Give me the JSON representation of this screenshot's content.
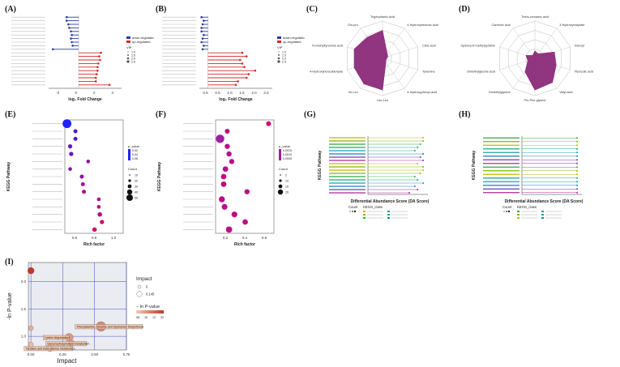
{
  "figure": {
    "panel_labels": [
      "(A)",
      "(B)",
      "(C)",
      "(D)",
      "(E)",
      "(F)",
      "(G)",
      "(H)",
      "(I)"
    ]
  },
  "colors": {
    "down": "#2b3aa6",
    "up": "#d62728",
    "radar_fill": "#8b2a7a",
    "bubble_low": "#f4c9b0",
    "bubble_high": "#c0392b",
    "kegg_high": "#d7006d",
    "kegg_low": "#2222ff"
  },
  "chart_data": [
    {
      "id": "A",
      "type": "bar",
      "orientation": "horizontal",
      "xlabel": "log₂ Fold Change",
      "xticks": [
        "-2",
        "0",
        "2",
        "4"
      ],
      "xlim": [
        -3.5,
        5
      ],
      "legend": [
        "down-regulated",
        "up-regulated"
      ],
      "legend_extra_title": "VIP",
      "legend_extra": [
        "1.0",
        "1.5",
        "2.0",
        "2.5"
      ],
      "categories": [
        "m1",
        "m2",
        "m3",
        "m4",
        "m5",
        "m6",
        "m7",
        "m8",
        "m9",
        "m10",
        "m11",
        "m12",
        "m13",
        "m14",
        "m15",
        "m16",
        "m17",
        "m18",
        "m19",
        "m20"
      ],
      "values": [
        -1.4,
        -1.4,
        -1.2,
        -1.1,
        -0.9,
        -0.8,
        -0.9,
        -0.8,
        -0.7,
        -3.0,
        2.6,
        2.4,
        2.5,
        2.3,
        2.2,
        2.2,
        2.1,
        2.0,
        2.0,
        3.6
      ]
    },
    {
      "id": "B",
      "type": "bar",
      "orientation": "horizontal",
      "xlabel": "log₂ Fold Change",
      "xticks": [
        "0.5",
        "0.5",
        "1.0",
        "1.5",
        "2.0",
        "2.5"
      ],
      "xlim": [
        -0.4,
        3
      ],
      "legend": [
        "down-regulated",
        "up-regulated"
      ],
      "legend_extra_title": "VIP",
      "legend_extra": [
        "1.0",
        "1.5",
        "2.0",
        "2.5"
      ],
      "categories": [
        "n1",
        "n2",
        "n3",
        "n4",
        "n5",
        "n6",
        "n7",
        "n8",
        "n9",
        "n10",
        "n11",
        "n12",
        "n13",
        "n14",
        "n15",
        "n16",
        "n17",
        "n18",
        "n19",
        "n20"
      ],
      "values": [
        -0.3,
        -0.2,
        -0.25,
        -0.3,
        -0.3,
        -0.2,
        -0.25,
        -0.3,
        -0.2,
        -0.25,
        1.6,
        1.8,
        1.5,
        1.6,
        1.7,
        2.2,
        1.9,
        1.8,
        1.4,
        1.3
      ]
    },
    {
      "id": "C",
      "type": "radar",
      "axes": [
        "Tryptophanic Acid",
        "4-Hydroxybenzoic acid",
        "Citric acid",
        "Tyramine",
        "4-Hydroxyphenyl-acid",
        "Leu-Leu",
        "Ile-Leu",
        "4-Hydroxybenzaldehyde",
        "N-methyltyramine acid",
        "Gln-pro"
      ],
      "values": [
        0.75,
        0.2,
        0.15,
        0.1,
        0.15,
        0.85,
        0.85,
        0.8,
        0.8,
        0.7
      ]
    },
    {
      "id": "D",
      "type": "radar",
      "axes": [
        "Trans-cinnamic acid",
        "3-Hydroxybutyrate",
        "Indoxyl",
        "Pipecolic acid",
        "Valyl-acid",
        "Pro-Phe-glycine",
        "Dimethylglycine",
        "Dimethylglycine acid",
        "5-hydroxy-6-methylpyridine",
        "Carbonic acid"
      ],
      "values": [
        0.2,
        0.15,
        0.55,
        0.6,
        0.8,
        0.85,
        0.45,
        0.2,
        0.25,
        0.1
      ]
    },
    {
      "id": "E",
      "type": "scatter",
      "ylabel": "KEGG Pathway",
      "xlabel": "Rich factor",
      "xticks": [
        "0.6",
        "0.8",
        "1.0"
      ],
      "xlim": [
        0.5,
        1.05
      ],
      "legend_color_title": "p_value",
      "legend_color": [
        "0.02",
        "0.04",
        "0.06"
      ],
      "legend_size_title": "Count",
      "legend_size": [
        "10",
        "20",
        "30",
        "40",
        "50"
      ],
      "categories": [
        "p1",
        "p2",
        "p3",
        "p4",
        "p5",
        "p6",
        "p7",
        "p8",
        "p9",
        "p10",
        "p11",
        "p12",
        "p13",
        "p14",
        "p15"
      ],
      "x": [
        0.52,
        0.6,
        0.6,
        0.55,
        0.56,
        0.72,
        0.55,
        0.66,
        0.67,
        0.68,
        0.82,
        0.82,
        0.83,
        0.85,
        0.78
      ],
      "count": [
        45,
        4,
        4,
        5,
        5,
        3,
        3,
        4,
        4,
        4,
        3,
        3,
        6,
        5,
        6
      ],
      "p": [
        0.01,
        0.02,
        0.02,
        0.03,
        0.03,
        0.04,
        0.04,
        0.04,
        0.05,
        0.05,
        0.05,
        0.05,
        0.05,
        0.06,
        0.06
      ]
    },
    {
      "id": "F",
      "type": "scatter",
      "ylabel": "KEGG Pathway",
      "xlabel": "Rich factor",
      "xticks": [
        "0.2",
        "0.4",
        "0.6"
      ],
      "xlim": [
        0.15,
        0.8
      ],
      "legend_color_title": "p_value",
      "legend_color": [
        "0.0015",
        "0.0010",
        "0.0005"
      ],
      "legend_size_title": "Count",
      "legend_size": [
        "2",
        "10",
        "15",
        "20"
      ],
      "categories": [
        "q1",
        "q2",
        "q3",
        "q4",
        "q5",
        "q6",
        "q7",
        "q8",
        "q9",
        "q10",
        "q11",
        "q12",
        "q13",
        "q14",
        "q15"
      ],
      "x": [
        0.74,
        0.28,
        0.2,
        0.28,
        0.3,
        0.33,
        0.26,
        0.24,
        0.24,
        0.5,
        0.22,
        0.25,
        0.36,
        0.48,
        0.3
      ],
      "count": [
        4,
        4,
        20,
        5,
        5,
        5,
        6,
        6,
        6,
        5,
        8,
        7,
        7,
        6,
        9
      ],
      "p": [
        0.0015,
        0.001,
        0.0002,
        0.0008,
        0.0008,
        0.0008,
        0.0008,
        0.0009,
        0.0009,
        0.0009,
        0.0009,
        0.0009,
        0.001,
        0.001,
        0.001
      ]
    },
    {
      "id": "G",
      "type": "lollipop",
      "ylabel": "KEGG Pathway",
      "xlabel": "Differential Abundance Score (DA Score)",
      "legend_size_title": "Count",
      "legend_color_title": "KEGG_class",
      "categories": [
        "g1",
        "g2",
        "g3",
        "g4",
        "g5",
        "g6",
        "g7",
        "g8",
        "g9",
        "g10",
        "g11",
        "g12",
        "g13",
        "g14",
        "g15",
        "g16",
        "g17",
        "g18"
      ],
      "values": [
        1.0,
        1.0,
        0.95,
        0.9,
        0.85,
        1.0,
        0.95,
        1.0,
        0.9,
        1.0,
        1.0,
        0.95,
        0.85,
        0.9,
        1.0,
        0.85,
        0.9,
        0.75
      ]
    },
    {
      "id": "H",
      "type": "lollipop",
      "ylabel": "KEGG Pathway",
      "xlabel": "Differential Abundance Score (DA Score)",
      "legend_size_title": "Count",
      "legend_color_title": "KEGG_class",
      "categories": [
        "h1",
        "h2",
        "h3",
        "h4",
        "h5",
        "h6",
        "h7",
        "h8",
        "h9",
        "h10",
        "h11",
        "h12",
        "h13",
        "h14",
        "h15",
        "h16"
      ],
      "values": [
        1.0,
        1.0,
        1.0,
        1.0,
        1.0,
        1.0,
        1.0,
        1.0,
        1.0,
        1.0,
        1.0,
        1.0,
        1.0,
        1.0,
        1.0,
        1.0
      ]
    },
    {
      "id": "I",
      "type": "scatter",
      "xlabel": "Impact",
      "ylabel": "-ln P-value",
      "xticks": [
        "0.00",
        "0.25",
        "0.50",
        "0.75"
      ],
      "yticks": [
        "1.0",
        "1.5",
        "2.0"
      ],
      "xlim": [
        -0.02,
        0.75
      ],
      "ylim": [
        0.75,
        2.35
      ],
      "legend_size_title": "Impact",
      "legend_size": [
        "0",
        "0.145"
      ],
      "legend_color_title": "− ln P-value",
      "legend_color": [
        "08",
        "10",
        "12",
        "20"
      ],
      "points": [
        {
          "x": 0.0,
          "y": 2.2,
          "size": 4,
          "heat": 1.0,
          "label": ""
        },
        {
          "x": 0.55,
          "y": 1.18,
          "size": 6,
          "heat": 0.45,
          "label": "Phenylalanine, tyrosine and tryptophan biosynthesis"
        },
        {
          "x": 0.3,
          "y": 0.98,
          "size": 5,
          "heat": 0.35,
          "label": "Lysine degradation"
        },
        {
          "x": 0.32,
          "y": 0.87,
          "size": 4,
          "heat": 0.25,
          "label": "Glycerophospholipid metabolism"
        },
        {
          "x": 0.15,
          "y": 0.78,
          "size": 4,
          "heat": 0.15,
          "label": "Tyrosine and beta-alanine metabolism"
        },
        {
          "x": 0.0,
          "y": 1.15,
          "size": 3,
          "heat": 0.2,
          "label": ""
        },
        {
          "x": 0.0,
          "y": 0.85,
          "size": 3,
          "heat": 0.1,
          "label": ""
        }
      ]
    }
  ]
}
